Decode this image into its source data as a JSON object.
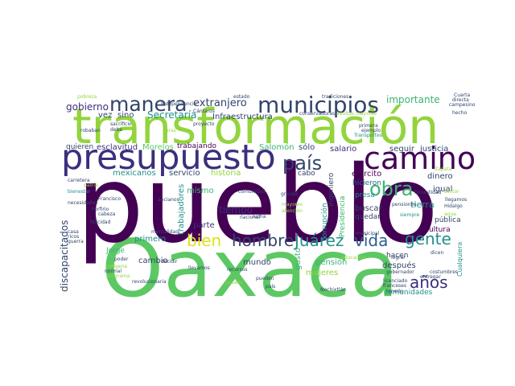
{
  "colors": {
    "background": "#ffffff",
    "dark_purple": "#440154",
    "indigo": "#3b2f7e",
    "navy": "#31446b",
    "blue": "#2a5f8e",
    "teal": "#21908c",
    "green": "#3bb472",
    "light_green": "#5cc863",
    "lime": "#93d43d",
    "yellow": "#dde318"
  },
  "words": {
    "pueblo": "pueblo",
    "oaxaca": "Oaxaca",
    "transformacion": "transformación",
    "presupuesto": "presupuesto",
    "camino": "camino",
    "municipios": "municipios",
    "manera": "manera",
    "pais": "país",
    "obra": "obra",
    "juarez": "Juárez",
    "vida": "vida",
    "hombre": "hombre",
    "bien": "bien",
    "gente": "gente",
    "anos": "años",
    "extranjero": "extranjero",
    "gobierno": "gobierno",
    "secretaria": "Secretaría",
    "infraestructura": "Infraestructura",
    "importante": "importante",
    "vez": "vez",
    "sino": "sino",
    "quieren": "quieren",
    "esclavitud": "esclavitud",
    "morelos": "Morelos",
    "trabajando": "trabajando",
    "salomon": "Salomón",
    "solo": "sólo",
    "salario": "salario",
    "seguir": "seguir",
    "justicia": "justicia",
    "mexicanos": "mexicanos",
    "servicio": "servicio",
    "historia": "historia",
    "cabo": "cabo",
    "ejercito": "ejército",
    "dinero": "dinero",
    "ingeniero": "ingeniero",
    "hicieron": "hicieron",
    "tiempo": "tiempo",
    "mismo": "mismo",
    "parte": "parte",
    "trabajadores": "trabajadores",
    "corrupcion": "corrupción",
    "presidencia": "Presidencia",
    "presa": "presa",
    "igual": "igual",
    "buscar": "buscar",
    "tierra": "tierra",
    "quedar": "quedar",
    "publica": "pública",
    "cultura": "cultura",
    "primero": "primero",
    "discapacitados": "discapacitados",
    "jorge": "Jorge",
    "cambio": "cambio",
    "mundo": "mundo",
    "gusto": "gusto",
    "pension": "pensión",
    "mujeres": "mujeres",
    "hacen": "hacen",
    "despues": "después",
    "comunidades": "comunidades",
    "cualquiera": "Cualquiera",
    "francisco": "Francisco",
    "porfirio": "Porfirio",
    "felicidad": "felicidad",
    "indigena": "indígena",
    "programa": "programa",
    "poder": "poder",
    "normal": "normal",
    "revolucionaria": "revolucionaria",
    "decidir": "decidir",
    "llevamos": "llevamos",
    "recursos": "recursos",
    "pueden": "pueden",
    "independencia": "Independencia",
    "cantaros": "Cántaros",
    "proyecto": "proyecto",
    "sacrificio": "sacrificio",
    "robaban": "robaban",
    "debe": "debe",
    "conservadoras": "conservadoras",
    "adultos_mayores": "adultos mayores",
    "campesino": "campesino",
    "cuarta": "Cuarta",
    "directa": "directa",
    "hecho": "hecho",
    "primera": "primera",
    "ejemplo": "ejemplo",
    "transportes": "Transportes",
    "honestidad": "honestidad",
    "llegamos": "llegamos",
    "hidalgo": "Hidalgo",
    "pensiones": "pensiones",
    "siempre": "siempre",
    "ancianos": "ancianos",
    "cabeza": "cabeza",
    "mentalidad": "mentalidad",
    "comunidad": "comunidad",
    "nacional": "nacional",
    "lucha": "lucha",
    "grande": "grande",
    "municipal": "municipal",
    "gobernador": "gobernador",
    "costumbres": "costumbres",
    "licenciado": "licenciado",
    "franceses": "franceses",
    "tenerlo": "tenerlo",
    "entregar": "entregar",
    "lograr": "lograr",
    "nochixtlan": "Nochixtlán",
    "tradiciones": "tradiciones",
    "pais_small": "país",
    "estado": "estado",
    "pobreza": "pobreza",
    "dicen": "dicen",
    "casa": "casa",
    "ricos": "ricos",
    "guerra": "guerra",
    "bienestar": "bienestar",
    "carretera": "carretera",
    "necesidades": "necesidades",
    "pasado": "pasado",
    "educacion": "educación",
    "mayores": "mayores",
    "atencion": "atención",
    "sector": "sector",
    "agua": "agua",
    "obras": "obras",
    "zapata": "Zapata",
    "patria": "patria"
  }
}
